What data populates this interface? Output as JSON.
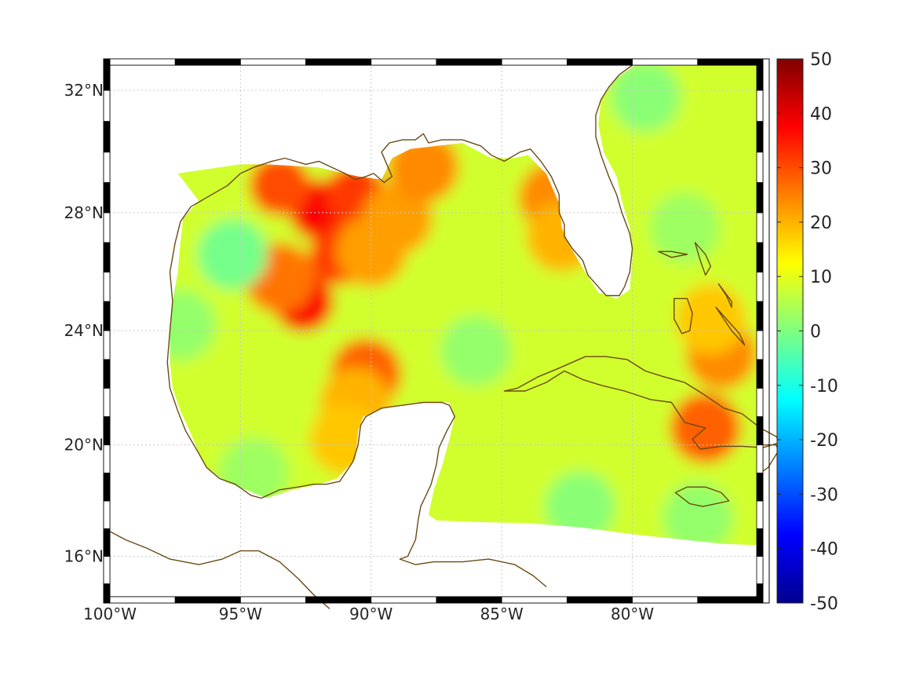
{
  "map": {
    "type": "heatmap",
    "projection": "mercator",
    "lon_range": [
      -100,
      -75
    ],
    "lat_range": [
      14.3,
      33
    ],
    "x_ticks": [
      {
        "value": -100,
        "label": "100°W"
      },
      {
        "value": -95,
        "label": "95°W"
      },
      {
        "value": -90,
        "label": "90°W"
      },
      {
        "value": -85,
        "label": "85°W"
      },
      {
        "value": -80,
        "label": "80°W"
      }
    ],
    "y_ticks": [
      {
        "value": 32,
        "label": "32°N"
      },
      {
        "value": 28,
        "label": "28°N"
      },
      {
        "value": 24,
        "label": "24°N"
      },
      {
        "value": 20,
        "label": "20°N"
      },
      {
        "value": 16,
        "label": "16°N"
      }
    ],
    "grid": true,
    "coast_color": "#6b4a12",
    "field_base_value": 8,
    "field_features": [
      {
        "lon": -92.0,
        "lat": 28.1,
        "value": 38
      },
      {
        "lon": -93.5,
        "lat": 28.9,
        "value": 30
      },
      {
        "lon": -90.6,
        "lat": 28.6,
        "value": 32
      },
      {
        "lon": -91.2,
        "lat": 26.6,
        "value": 32
      },
      {
        "lon": -92.6,
        "lat": 25.0,
        "value": 38
      },
      {
        "lon": -93.5,
        "lat": 25.8,
        "value": 26
      },
      {
        "lon": -90.0,
        "lat": 26.7,
        "value": 22
      },
      {
        "lon": -89.0,
        "lat": 27.8,
        "value": 22
      },
      {
        "lon": -88.0,
        "lat": 29.5,
        "value": 24
      },
      {
        "lon": -90.2,
        "lat": 22.5,
        "value": 28
      },
      {
        "lon": -90.6,
        "lat": 21.5,
        "value": 20
      },
      {
        "lon": -91.0,
        "lat": 20.2,
        "value": 18
      },
      {
        "lon": -83.0,
        "lat": 28.5,
        "value": 24
      },
      {
        "lon": -82.7,
        "lat": 27.2,
        "value": 20
      },
      {
        "lon": -76.6,
        "lat": 23.2,
        "value": 24
      },
      {
        "lon": -77.2,
        "lat": 20.6,
        "value": 28
      },
      {
        "lon": -77.0,
        "lat": 24.4,
        "value": 18
      },
      {
        "lon": -95.3,
        "lat": 26.6,
        "value": -1
      },
      {
        "lon": -97.3,
        "lat": 24.2,
        "value": 2
      },
      {
        "lon": -86.0,
        "lat": 23.3,
        "value": 2
      },
      {
        "lon": -79.5,
        "lat": 31.8,
        "value": 1
      },
      {
        "lon": -78.0,
        "lat": 27.5,
        "value": 3
      },
      {
        "lon": -82.0,
        "lat": 17.8,
        "value": 1
      },
      {
        "lon": -77.5,
        "lat": 17.4,
        "value": 2
      },
      {
        "lon": -94.5,
        "lat": 19.0,
        "value": 3
      }
    ]
  },
  "colorbar": {
    "colormap": "jet",
    "min": -50,
    "max": 50,
    "labels": [
      "50",
      "40",
      "30",
      "20",
      "10",
      "0",
      "-10",
      "-20",
      "-30",
      "-40",
      "-50"
    ]
  }
}
